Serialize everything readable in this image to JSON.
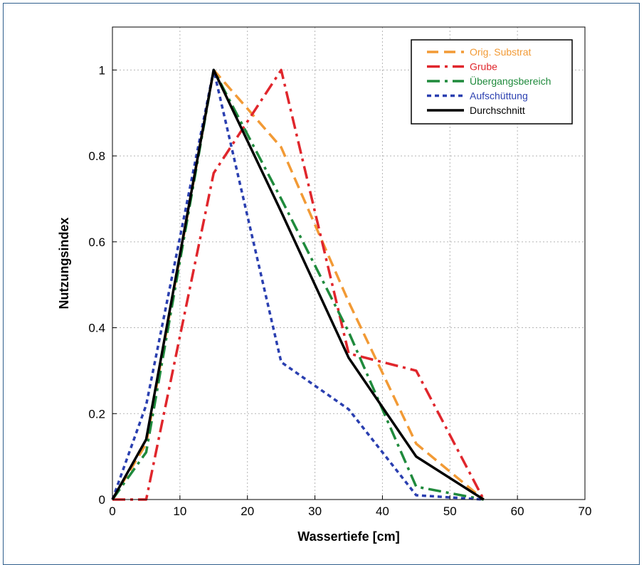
{
  "chart_data": {
    "type": "line",
    "xlabel": "Wassertiefe [cm]",
    "ylabel": "Nutzungsindex",
    "xlim": [
      0,
      70
    ],
    "ylim": [
      0,
      1.1
    ],
    "xticks": [
      "0",
      "10",
      "20",
      "30",
      "40",
      "50",
      "60",
      "70"
    ],
    "yticks": [
      "0",
      "0.2",
      "0.4",
      "0.6",
      "0.8",
      "1"
    ],
    "grid": true,
    "legend_position": "top-right",
    "series": [
      {
        "name": "Orig. Substrat",
        "color": "#f29a35",
        "dash": "dashed",
        "x": [
          0,
          5,
          15,
          25,
          35,
          45,
          55
        ],
        "y": [
          0,
          0.13,
          1.0,
          0.82,
          0.46,
          0.13,
          0.0
        ]
      },
      {
        "name": "Grube",
        "color": "#e0262c",
        "dash": "dash-dot",
        "x": [
          0,
          5,
          15,
          25,
          35,
          45,
          55
        ],
        "y": [
          0,
          0,
          0.76,
          1.0,
          0.34,
          0.3,
          0.0
        ]
      },
      {
        "name": "Übergangsbereich",
        "color": "#1f8a3c",
        "dash": "dash-dot",
        "x": [
          0,
          5,
          15,
          25,
          35,
          45,
          55
        ],
        "y": [
          0,
          0.11,
          1.0,
          0.7,
          0.39,
          0.03,
          0.0
        ]
      },
      {
        "name": "Aufschüttung",
        "color": "#2a3fb0",
        "dash": "dotted",
        "x": [
          0,
          5,
          15,
          25,
          35,
          45,
          55
        ],
        "y": [
          0,
          0.22,
          1.0,
          0.32,
          0.21,
          0.01,
          0.0
        ]
      },
      {
        "name": "Durchschnitt",
        "color": "#000000",
        "dash": "solid",
        "x": [
          0,
          5,
          15,
          25,
          35,
          45,
          55
        ],
        "y": [
          0,
          0.14,
          1.0,
          0.67,
          0.33,
          0.1,
          0.0
        ]
      }
    ]
  }
}
